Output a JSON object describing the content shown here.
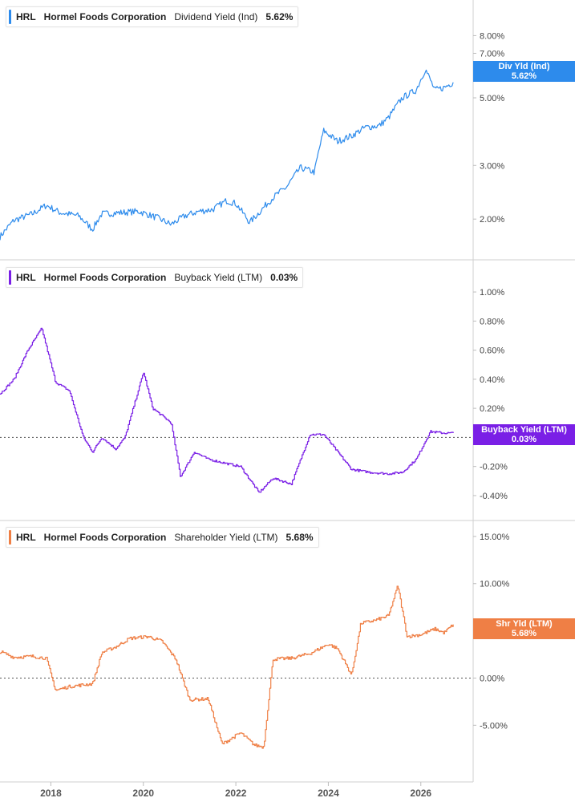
{
  "x_axis": {
    "ticks": [
      "2018",
      "2020",
      "2022",
      "2024",
      "2026"
    ]
  },
  "colors": {
    "div": "#2d8bec",
    "buy": "#7a1fe6",
    "shr": "#ef7f45"
  },
  "panels": [
    {
      "ticker": "HRL",
      "company": "Hormel Foods Corporation",
      "metric": "Dividend Yield (Ind)",
      "value": "5.62%",
      "tag_label": "Div Yld (Ind)",
      "tag_value": "5.62%",
      "y_ticks": [
        "8.00%",
        "7.00%",
        "5.00%",
        "3.00%",
        "2.00%"
      ]
    },
    {
      "ticker": "HRL",
      "company": "Hormel Foods Corporation",
      "metric": "Buyback Yield (LTM)",
      "value": "0.03%",
      "tag_label": "Buyback Yield (LTM)",
      "tag_value": "0.03%",
      "y_ticks": [
        "1.00%",
        "0.80%",
        "0.60%",
        "0.40%",
        "0.20%",
        "-0.20%",
        "-0.40%"
      ]
    },
    {
      "ticker": "HRL",
      "company": "Hormel Foods Corporation",
      "metric": "Shareholder Yield (LTM)",
      "value": "5.68%",
      "tag_label": "Shr Yld (LTM)",
      "tag_value": "5.68%",
      "y_ticks": [
        "15.00%",
        "10.00%",
        "0.00%",
        "-5.00%"
      ]
    }
  ],
  "chart_data": [
    {
      "type": "line",
      "series": [
        {
          "name": "Dividend Yield (Ind)",
          "x": [
            2016.9,
            2017.2,
            2017.6,
            2017.9,
            2018.2,
            2018.6,
            2018.9,
            2019.1,
            2019.5,
            2019.9,
            2020.3,
            2020.6,
            2020.9,
            2021.2,
            2021.5,
            2021.8,
            2022.0,
            2022.3,
            2022.5,
            2022.8,
            2023.1,
            2023.4,
            2023.7,
            2023.9,
            2024.2,
            2024.5,
            2024.8,
            2025.1,
            2025.3,
            2025.6,
            2025.9,
            2026.1,
            2026.3,
            2026.5,
            2026.7
          ],
          "y": [
            1.75,
            1.98,
            2.08,
            2.22,
            2.1,
            2.05,
            1.85,
            2.08,
            2.1,
            2.12,
            2.02,
            1.92,
            2.05,
            2.12,
            2.15,
            2.3,
            2.25,
            1.95,
            2.1,
            2.35,
            2.55,
            2.95,
            2.85,
            3.9,
            3.6,
            3.75,
            4.0,
            4.05,
            4.3,
            5.0,
            5.3,
            6.2,
            5.3,
            5.4,
            5.62
          ]
        }
      ],
      "ylim": [
        1.7,
        9.0
      ],
      "scale": "log"
    },
    {
      "type": "line",
      "series": [
        {
          "name": "Buyback Yield (LTM)",
          "x": [
            2016.9,
            2017.2,
            2017.5,
            2017.8,
            2018.1,
            2018.4,
            2018.7,
            2018.9,
            2019.1,
            2019.4,
            2019.6,
            2020.0,
            2020.2,
            2020.6,
            2020.8,
            2021.1,
            2021.4,
            2021.8,
            2022.1,
            2022.5,
            2022.8,
            2023.2,
            2023.6,
            2023.9,
            2024.2,
            2024.5,
            2024.9,
            2025.3,
            2025.6,
            2025.9,
            2026.2,
            2026.5,
            2026.7
          ],
          "y": [
            0.3,
            0.4,
            0.6,
            0.75,
            0.38,
            0.32,
            0.0,
            -0.1,
            0.0,
            -0.08,
            0.0,
            0.45,
            0.2,
            0.1,
            -0.27,
            -0.1,
            -0.15,
            -0.18,
            -0.2,
            -0.38,
            -0.28,
            -0.32,
            0.02,
            0.02,
            -0.1,
            -0.22,
            -0.24,
            -0.25,
            -0.24,
            -0.15,
            0.04,
            0.03,
            0.03
          ]
        }
      ],
      "ylim": [
        -0.45,
        1.05
      ]
    },
    {
      "type": "line",
      "series": [
        {
          "name": "Shareholder Yield (LTM)",
          "x": [
            2016.9,
            2017.2,
            2017.6,
            2017.9,
            2018.1,
            2018.4,
            2018.9,
            2019.1,
            2019.4,
            2019.7,
            2020.1,
            2020.4,
            2020.7,
            2021.0,
            2021.4,
            2021.7,
            2022.1,
            2022.4,
            2022.6,
            2022.8,
            2023.2,
            2023.6,
            2024.0,
            2024.2,
            2024.5,
            2024.7,
            2025.0,
            2025.3,
            2025.5,
            2025.7,
            2026.0,
            2026.3,
            2026.5,
            2026.7
          ],
          "y": [
            2.8,
            2.2,
            2.3,
            2.1,
            -1.3,
            -0.9,
            -0.6,
            2.7,
            3.3,
            4.2,
            4.4,
            3.9,
            2.0,
            -2.3,
            -2.2,
            -7.0,
            -5.8,
            -7.1,
            -7.3,
            2.0,
            2.1,
            2.6,
            3.6,
            3.1,
            0.3,
            5.8,
            6.1,
            6.6,
            9.8,
            4.4,
            4.6,
            5.2,
            4.8,
            5.68
          ]
        }
      ],
      "ylim": [
        -8.2,
        15.5
      ]
    }
  ]
}
